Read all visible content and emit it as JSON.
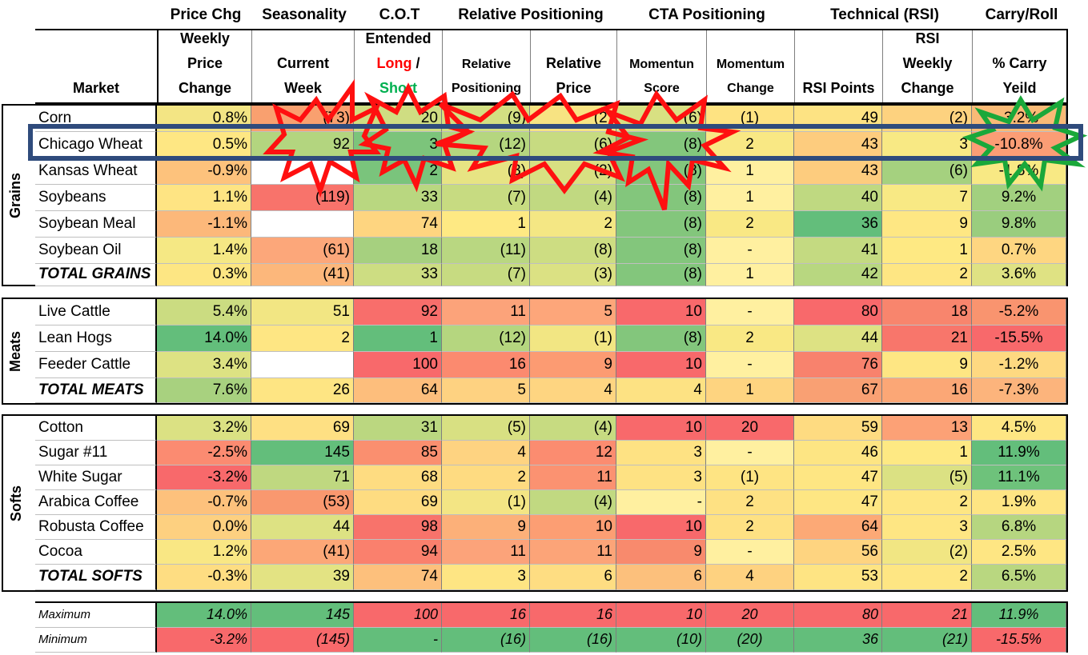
{
  "categories": {
    "price_chg": "Price Chg",
    "seasonality": "Seasonality",
    "cot": "C.O.T",
    "relative_positioning": "Relative Positioning",
    "cta_positioning": "CTA Positioning",
    "technical": "Technical (RSI)",
    "carry_roll": "Carry/Roll"
  },
  "headers": {
    "market": "Market",
    "weekly_price_change": "Weekly Price Change",
    "current_week": "Current Week",
    "cot_title": "Entended",
    "cot_long": "Long",
    "cot_slash": " /",
    "cot_short": "Short",
    "relative_positioning": "Relative Positioning",
    "relative_price": "Relative Price",
    "momentum_score": "Momentun Score",
    "momentum_change": "Momentum Change",
    "rsi_points": "RSI Points",
    "rsi_weekly_change": "RSI Weekly Change",
    "carry_yield": "% Carry Yeild"
  },
  "groups": [
    {
      "name": "Grains",
      "rows": [
        {
          "market": "Corn",
          "price": "0.8%",
          "season": "(73)",
          "cot": "20",
          "relpos": "(9)",
          "relprice": "(2)",
          "mom": "(6)",
          "momchg": "(1)",
          "rsi": "49",
          "rsichg": "(2)",
          "carry": "-3.2%"
        },
        {
          "market": "Chicago Wheat",
          "price": "0.5%",
          "season": "92",
          "cot": "3",
          "relpos": "(12)",
          "relprice": "(6)",
          "mom": "(8)",
          "momchg": "2",
          "rsi": "43",
          "rsichg": "3",
          "carry": "-10.8%"
        },
        {
          "market": "Kansas Wheat",
          "price": "-0.9%",
          "season": "",
          "cot": "2",
          "relpos": "(3)",
          "relprice": "(2)",
          "mom": "(8)",
          "momchg": "1",
          "rsi": "43",
          "rsichg": "(6)",
          "carry": "-1.8%"
        },
        {
          "market": "Soybeans",
          "price": "1.1%",
          "season": "(119)",
          "cot": "33",
          "relpos": "(7)",
          "relprice": "(4)",
          "mom": "(8)",
          "momchg": "1",
          "rsi": "40",
          "rsichg": "7",
          "carry": "9.2%"
        },
        {
          "market": "Soybean Meal",
          "price": "-1.1%",
          "season": "",
          "cot": "74",
          "relpos": "1",
          "relprice": "2",
          "mom": "(8)",
          "momchg": "2",
          "rsi": "36",
          "rsichg": "9",
          "carry": "9.8%"
        },
        {
          "market": "Soybean Oil",
          "price": "1.4%",
          "season": "(61)",
          "cot": "18",
          "relpos": "(11)",
          "relprice": "(8)",
          "mom": "(8)",
          "momchg": "-",
          "rsi": "41",
          "rsichg": "1",
          "carry": "0.7%"
        },
        {
          "market": "TOTAL GRAINS",
          "price": "0.3%",
          "season": "(41)",
          "cot": "33",
          "relpos": "(7)",
          "relprice": "(3)",
          "mom": "(8)",
          "momchg": "1",
          "rsi": "42",
          "rsichg": "2",
          "carry": "3.6%",
          "total": true
        }
      ]
    },
    {
      "name": "Meats",
      "rows": [
        {
          "market": "Live Cattle",
          "price": "5.4%",
          "season": "51",
          "cot": "92",
          "relpos": "11",
          "relprice": "5",
          "mom": "10",
          "momchg": "-",
          "rsi": "80",
          "rsichg": "18",
          "carry": "-5.2%"
        },
        {
          "market": "Lean Hogs",
          "price": "14.0%",
          "season": "2",
          "cot": "1",
          "relpos": "(12)",
          "relprice": "(1)",
          "mom": "(8)",
          "momchg": "2",
          "rsi": "44",
          "rsichg": "21",
          "carry": "-15.5%"
        },
        {
          "market": "Feeder Cattle",
          "price": "3.4%",
          "season": "",
          "cot": "100",
          "relpos": "16",
          "relprice": "9",
          "mom": "10",
          "momchg": "-",
          "rsi": "76",
          "rsichg": "9",
          "carry": "-1.2%"
        },
        {
          "market": "TOTAL MEATS",
          "price": "7.6%",
          "season": "26",
          "cot": "64",
          "relpos": "5",
          "relprice": "4",
          "mom": "4",
          "momchg": "1",
          "rsi": "67",
          "rsichg": "16",
          "carry": "-7.3%",
          "total": true
        }
      ]
    },
    {
      "name": "Softs",
      "rows": [
        {
          "market": "Cotton",
          "price": "3.2%",
          "season": "69",
          "cot": "31",
          "relpos": "(5)",
          "relprice": "(4)",
          "mom": "10",
          "momchg": "20",
          "rsi": "59",
          "rsichg": "13",
          "carry": "4.5%"
        },
        {
          "market": "Sugar #11",
          "price": "-2.5%",
          "season": "145",
          "cot": "85",
          "relpos": "4",
          "relprice": "12",
          "mom": "3",
          "momchg": "-",
          "rsi": "46",
          "rsichg": "1",
          "carry": "11.9%"
        },
        {
          "market": "White Sugar",
          "price": "-3.2%",
          "season": "71",
          "cot": "68",
          "relpos": "2",
          "relprice": "11",
          "mom": "3",
          "momchg": "(1)",
          "rsi": "47",
          "rsichg": "(5)",
          "carry": "11.1%"
        },
        {
          "market": "Arabica Coffee",
          "price": "-0.7%",
          "season": "(53)",
          "cot": "69",
          "relpos": "(1)",
          "relprice": "(4)",
          "mom": "-",
          "momchg": "2",
          "rsi": "47",
          "rsichg": "2",
          "carry": "1.9%"
        },
        {
          "market": "Robusta Coffee",
          "price": "0.0%",
          "season": "44",
          "cot": "98",
          "relpos": "9",
          "relprice": "10",
          "mom": "10",
          "momchg": "2",
          "rsi": "64",
          "rsichg": "3",
          "carry": "6.8%"
        },
        {
          "market": "Cocoa",
          "price": "1.2%",
          "season": "(41)",
          "cot": "94",
          "relpos": "11",
          "relprice": "11",
          "mom": "9",
          "momchg": "-",
          "rsi": "56",
          "rsichg": "(2)",
          "carry": "2.5%"
        },
        {
          "market": "TOTAL SOFTS",
          "price": "-0.3%",
          "season": "39",
          "cot": "74",
          "relpos": "3",
          "relprice": "6",
          "mom": "6",
          "momchg": "4",
          "rsi": "53",
          "rsichg": "2",
          "carry": "6.5%",
          "total": true
        }
      ]
    }
  ],
  "summary": [
    {
      "market": "Maximum",
      "price": "14.0%",
      "season": "145",
      "cot": "100",
      "relpos": "16",
      "relprice": "16",
      "mom": "10",
      "momchg": "20",
      "rsi": "80",
      "rsichg": "21",
      "carry": "11.9%"
    },
    {
      "market": "Minimum",
      "price": "-3.2%",
      "season": "(145)",
      "cot": "-",
      "relpos": "(16)",
      "relprice": "(16)",
      "mom": "(10)",
      "momchg": "(20)",
      "rsi": "36",
      "rsichg": "(21)",
      "carry": "-15.5%"
    }
  ],
  "colors": {
    "header_text_long": "#ff0000",
    "header_text_short": "#00b050",
    "highlight_box": "#2f4b7c",
    "burst_red": "#ff1010",
    "burst_green": "#1aa83a"
  },
  "cell_colors": {
    "groups": [
      [
        [
          "#f3e584",
          "#f9a06f",
          "#cfdd82",
          "#d3df82",
          "#f7e382",
          "#d8e082",
          "#fee382",
          "#fde383",
          "#fdd27f",
          "#f9ba76"
        ],
        [
          "#fee783",
          "#b3d57f",
          "#7cc47b",
          "#b5d67f",
          "#c7db81",
          "#83c67c",
          "#f9e884",
          "#fdcc7e",
          "#f8e984",
          "#fb9d75"
        ],
        [
          "#fdc27c",
          "#ffffff",
          "#7ac47c",
          "#e7e483",
          "#d8e082",
          "#83c67c",
          "#fff0a0",
          "#fdcc7e",
          "#a5d17f",
          "#f8e984"
        ],
        [
          "#fee483",
          "#f8736b",
          "#b9d780",
          "#c7db81",
          "#c1d981",
          "#83c67c",
          "#fff0a0",
          "#bfd981",
          "#f8e984",
          "#a2d07f"
        ],
        [
          "#fcb87a",
          "#ffffff",
          "#fed580",
          "#fee983",
          "#f4e784",
          "#83c67c",
          "#f9e884",
          "#63be7b",
          "#fee783",
          "#9acd7e"
        ],
        [
          "#f5e884",
          "#fca77a",
          "#a6d07f",
          "#b9d781",
          "#cddd82",
          "#83c67c",
          "#fff0a0",
          "#c4da81",
          "#fee983",
          "#fed681"
        ],
        [
          "#fde683",
          "#fcb77b",
          "#cddd82",
          "#c7db81",
          "#dbe183",
          "#83c67c",
          "#fff0a0",
          "#b8d780",
          "#fee683",
          "#dfe283"
        ]
      ],
      [
        [
          "#cbdc81",
          "#f2e683",
          "#f86e6b",
          "#fca37a",
          "#fda67a",
          "#f8696b",
          "#fff0a0",
          "#f8696b",
          "#f8856d",
          "#f9946f"
        ],
        [
          "#63be7b",
          "#fee683",
          "#63be7b",
          "#b5d67f",
          "#f2e683",
          "#83c67c",
          "#f9e884",
          "#dde283",
          "#f8766b",
          "#f8696b"
        ],
        [
          "#dde283",
          "#ffffff",
          "#f8696b",
          "#fb8a6f",
          "#fc9b72",
          "#f8696b",
          "#fff0a0",
          "#f8826d",
          "#fee683",
          "#fed981"
        ],
        [
          "#a8d17f",
          "#fee583",
          "#fdbe7c",
          "#fed281",
          "#fed581",
          "#fde283",
          "#fed480",
          "#f9a073",
          "#fba776",
          "#fcb47c"
        ]
      ],
      [
        [
          "#dbe183",
          "#fee083",
          "#bbd780",
          "#d8e082",
          "#c7db81",
          "#f8696b",
          "#f8696b",
          "#fedb81",
          "#fca176",
          "#fee683"
        ],
        [
          "#fb8b71",
          "#63be7b",
          "#fa8f6f",
          "#fed381",
          "#fb8c70",
          "#fee283",
          "#fff0a0",
          "#fde583",
          "#fee983",
          "#63be7b"
        ],
        [
          "#f8696b",
          "#bfd880",
          "#fedc81",
          "#fedb81",
          "#fb9271",
          "#fee283",
          "#fee483",
          "#fee683",
          "#dbe183",
          "#6ec27b"
        ],
        [
          "#fdc17c",
          "#f9986f",
          "#fedc81",
          "#f3e584",
          "#c1d981",
          "#fff0a0",
          "#fee183",
          "#fee683",
          "#fee683",
          "#fee583"
        ],
        [
          "#fdd080",
          "#dde283",
          "#f8736b",
          "#fcb079",
          "#fc9e73",
          "#f8696b",
          "#fee183",
          "#fca976",
          "#fee683",
          "#b6d680"
        ],
        [
          "#f9e784",
          "#fca777",
          "#fa806d",
          "#fca37a",
          "#fca478",
          "#f88a6d",
          "#fff0a0",
          "#fed480",
          "#f1e683",
          "#fee683"
        ],
        [
          "#fedd82",
          "#e3e383",
          "#fdc07c",
          "#fee583",
          "#fedd82",
          "#fcc07c",
          "#fed280",
          "#fee483",
          "#fee683",
          "#b9d780"
        ]
      ]
    ],
    "summary": [
      [
        "#63be7b",
        "#63be7b",
        "#f8696b",
        "#f8696b",
        "#f8696b",
        "#f8696b",
        "#f8696b",
        "#f8696b",
        "#f8696b",
        "#63be7b"
      ],
      [
        "#f8696b",
        "#f8696b",
        "#63be7b",
        "#63be7b",
        "#63be7b",
        "#63be7b",
        "#63be7b",
        "#63be7b",
        "#63be7b",
        "#f8696b"
      ]
    ]
  }
}
